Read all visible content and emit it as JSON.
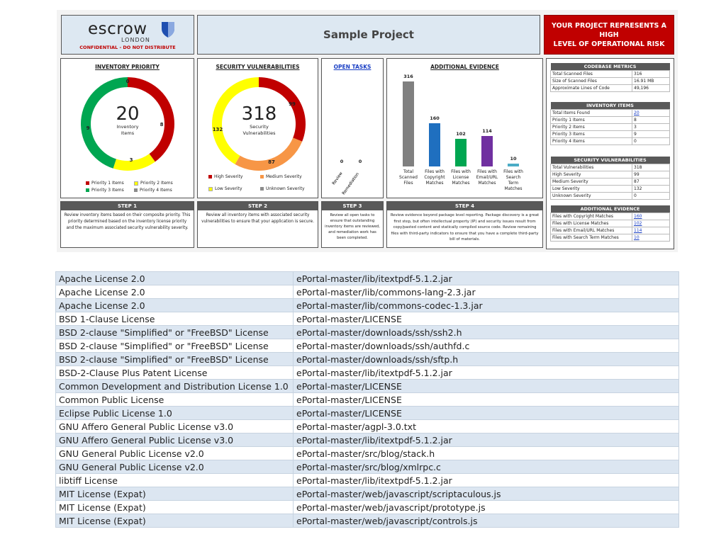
{
  "header": {
    "logo_word": "escrow",
    "logo_sub": "LONDON",
    "confidential": "CONFIDENTIAL - DO NOT DISTRIBUTE",
    "project_title": "Sample Project",
    "risk_line1": "YOUR PROJECT REPRESENTS A",
    "risk_line2": "HIGH",
    "risk_line3": "LEVEL OF OPERATIONAL RISK"
  },
  "inventory": {
    "title": "INVENTORY PRIORITY",
    "total": "20",
    "total_label_1": "Inventory",
    "total_label_2": "Items",
    "legend": [
      "Priority 1 Items",
      "Priority 2 Items",
      "Priority 3 Items",
      "Priority 4 Items"
    ],
    "values": {
      "p1": "8",
      "p2": "3",
      "p3": "9",
      "p4": "0"
    }
  },
  "security": {
    "title": "SECURITY VULNERABILITIES",
    "total": "318",
    "total_label_1": "Security",
    "total_label_2": "Vulnerabilities",
    "legend": [
      "High Severity",
      "Medium Severity",
      "Low Severity",
      "Unknown Severity"
    ],
    "values": {
      "high": "99",
      "medium": "87",
      "low": "132",
      "unknown": "0"
    }
  },
  "open_tasks": {
    "title": "OPEN TASKS",
    "cat1": "Review",
    "cat2": "Remediation",
    "v1": "0",
    "v2": "0"
  },
  "evidence": {
    "title": "ADDITIONAL EVIDENCE",
    "bars": [
      {
        "value": "316",
        "label": "Total Scanned Files"
      },
      {
        "value": "160",
        "label": "Files with Copyright Matches"
      },
      {
        "value": "102",
        "label": "Files with License Matches"
      },
      {
        "value": "114",
        "label": "Files with Email/URL Matches"
      },
      {
        "value": "10",
        "label": "Files with Search Term Matches"
      }
    ]
  },
  "steps": [
    {
      "title": "STEP 1",
      "text": "Review inventory items based on their composite priority. This priority determined based on the inventory license priority and the maximum associated security vulnerability severity."
    },
    {
      "title": "STEP 2",
      "text": "Review all inventory items with associated security vulnerabilities to ensure that your application is secure."
    },
    {
      "title": "STEP 3",
      "text": "Review all open tasks to ensure that outstanding inventory items are reviewed, and remediation work has been completed."
    },
    {
      "title": "STEP 4",
      "text": "Review evidence beyond package level reporting. Package discovery is a great first step, but often intellectual property (IP) and security issues result from copy/pasted content and statically compiled source code. Review remaining files with third-party indicators to ensure that you have a complete third-party bill of materials."
    }
  ],
  "metrics": {
    "codebase": {
      "title": "CODEBASE METRICS",
      "rows": [
        [
          "Total Scanned Files",
          "316"
        ],
        [
          "Size of Scanned Files",
          "16.91 MB"
        ],
        [
          "Approximate Lines of Code",
          "49,196"
        ]
      ]
    },
    "inventory_items": {
      "title": "INVENTORY ITEMS",
      "rows": [
        [
          "Total Items Found",
          "20"
        ],
        [
          "Priority 1 Items",
          "8"
        ],
        [
          "Priority 2 Items",
          "3"
        ],
        [
          "Priority 3 Items",
          "9"
        ],
        [
          "Priority 4 Items",
          "0"
        ]
      ]
    },
    "security_vulns": {
      "title": "SECURITY VULNERABILITIES",
      "rows": [
        [
          "Total Vulnerabilities",
          "318"
        ],
        [
          "High Severity",
          "99"
        ],
        [
          "Medium Severity",
          "87"
        ],
        [
          "Low Severity",
          "132"
        ],
        [
          "Unknown Severity",
          "0"
        ]
      ]
    },
    "additional_evidence": {
      "title": "ADDITIONAL EVIDENCE",
      "rows": [
        [
          "Files with Copyright Matches",
          "160"
        ],
        [
          "Files with License Matches",
          "102"
        ],
        [
          "Files with Email/URL Matches",
          "114"
        ],
        [
          "Files with Search Term Matches",
          "10"
        ]
      ]
    }
  },
  "licenses": [
    [
      "Apache License 2.0",
      "ePortal-master/lib/itextpdf-5.1.2.jar"
    ],
    [
      "Apache License 2.0",
      "ePortal-master/lib/commons-lang-2.3.jar"
    ],
    [
      "Apache License 2.0",
      "ePortal-master/lib/commons-codec-1.3.jar"
    ],
    [
      "BSD 1-Clause License",
      "ePortal-master/LICENSE"
    ],
    [
      "BSD 2-clause \"Simplified\" or \"FreeBSD\" License",
      "ePortal-master/downloads/ssh/ssh2.h"
    ],
    [
      "BSD 2-clause \"Simplified\" or \"FreeBSD\" License",
      "ePortal-master/downloads/ssh/authfd.c"
    ],
    [
      "BSD 2-clause \"Simplified\" or \"FreeBSD\" License",
      "ePortal-master/downloads/ssh/sftp.h"
    ],
    [
      "BSD-2-Clause Plus Patent License",
      "ePortal-master/lib/itextpdf-5.1.2.jar"
    ],
    [
      "Common Development and Distribution License 1.0",
      "ePortal-master/LICENSE"
    ],
    [
      "Common Public License",
      "ePortal-master/LICENSE"
    ],
    [
      "Eclipse Public License 1.0",
      "ePortal-master/LICENSE"
    ],
    [
      "GNU Affero General Public License v3.0",
      "ePortal-master/agpl-3.0.txt"
    ],
    [
      "GNU Affero General Public License v3.0",
      "ePortal-master/lib/itextpdf-5.1.2.jar"
    ],
    [
      "GNU General Public License v2.0",
      "ePortal-master/src/blog/stack.h"
    ],
    [
      "GNU General Public License v2.0",
      "ePortal-master/src/blog/xmlrpc.c"
    ],
    [
      "libtiff License",
      "ePortal-master/lib/itextpdf-5.1.2.jar"
    ],
    [
      "MIT License (Expat)",
      "ePortal-master/web/javascript/scriptaculous.js"
    ],
    [
      "MIT License (Expat)",
      "ePortal-master/web/javascript/prototype.js"
    ],
    [
      "MIT License (Expat)",
      "ePortal-master/web/javascript/controls.js"
    ]
  ],
  "colors": {
    "red": "#c00000",
    "yellow": "#ffff00",
    "green": "#00a651",
    "gray": "#8c8c8c",
    "orange": "#f79646",
    "bar_gray": "#808080",
    "bar_blue": "#1f6fbf",
    "bar_green": "#00a651",
    "bar_purple": "#7030a0",
    "bar_teal": "#4bacc6"
  }
}
